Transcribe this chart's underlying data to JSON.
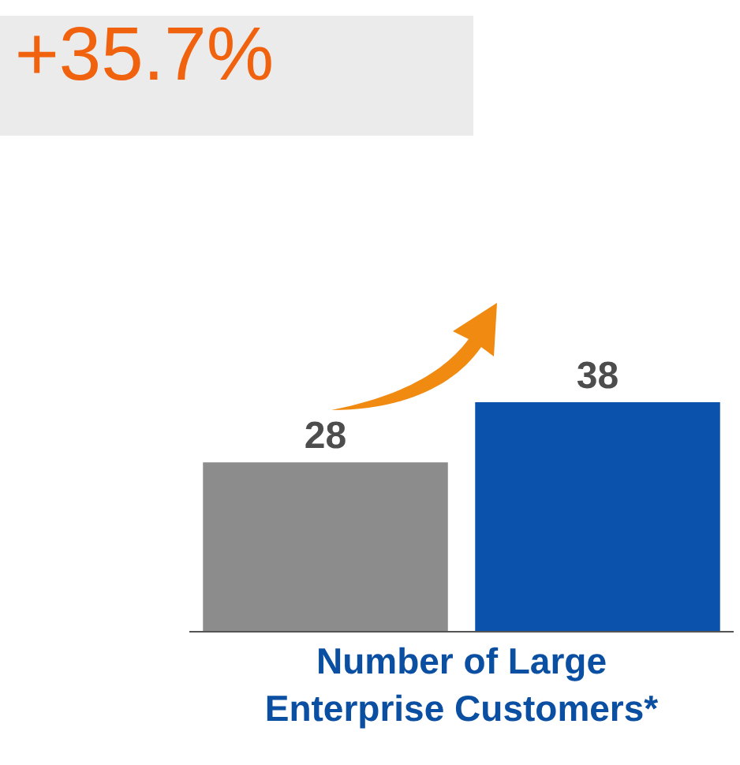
{
  "chart_data": {
    "type": "bar",
    "title": "+35.7%",
    "xlabel": "Number of Large\nEnterprise Customers*",
    "categories": [
      null,
      null
    ],
    "values": [
      28,
      38
    ],
    "colors": [
      "#8c8c8c",
      "#0b52ad"
    ],
    "data_labels": true,
    "legend": false
  }
}
